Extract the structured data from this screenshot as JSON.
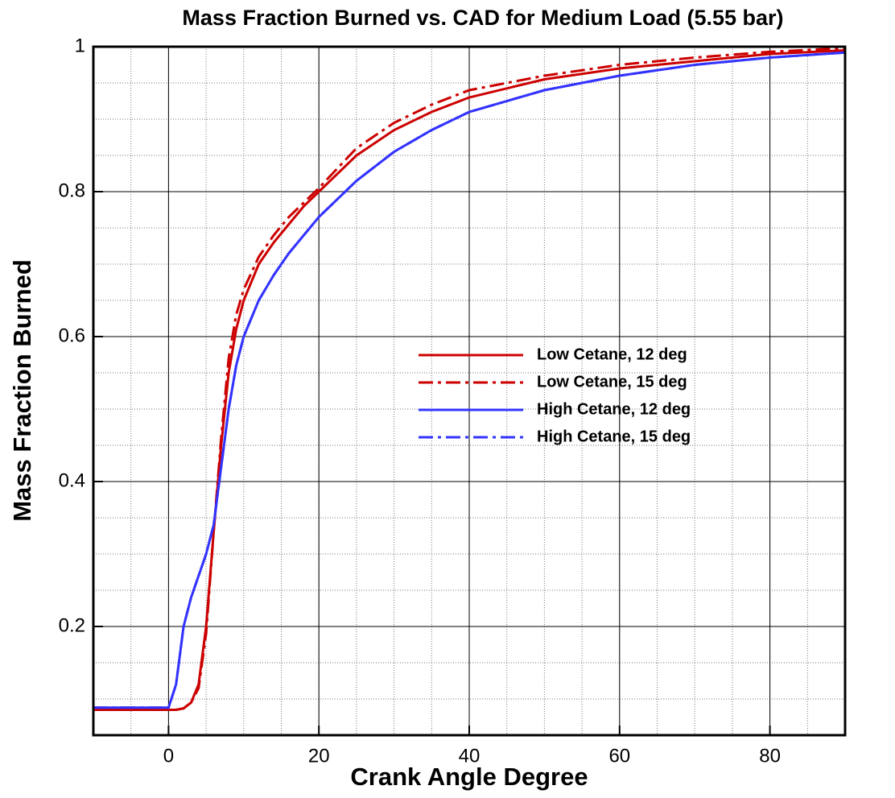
{
  "chart_data": {
    "type": "line",
    "title": "Mass Fraction Burned vs. CAD for Medium Load (5.55 bar)",
    "x_label": "Crank Angle Degree",
    "y_label": "Mass Fraction Burned",
    "x": [
      -10,
      -5,
      0,
      1,
      2,
      3,
      4,
      5,
      6,
      7,
      8,
      9,
      10,
      12,
      14,
      16,
      18,
      20,
      25,
      30,
      35,
      40,
      50,
      60,
      70,
      80,
      90
    ],
    "series": [
      {
        "name": "Low Cetane, 12 deg",
        "color": "#cc0000",
        "style": "solid",
        "values": [
          0.085,
          0.085,
          0.085,
          0.085,
          0.087,
          0.095,
          0.12,
          0.2,
          0.33,
          0.45,
          0.55,
          0.61,
          0.65,
          0.7,
          0.73,
          0.755,
          0.78,
          0.8,
          0.85,
          0.885,
          0.91,
          0.93,
          0.955,
          0.97,
          0.98,
          0.99,
          0.995
        ]
      },
      {
        "name": "Low Cetane, 15 deg",
        "color": "#cc0000",
        "style": "dashdot",
        "values": [
          0.085,
          0.085,
          0.085,
          0.085,
          0.087,
          0.095,
          0.115,
          0.19,
          0.33,
          0.46,
          0.57,
          0.63,
          0.665,
          0.71,
          0.74,
          0.765,
          0.785,
          0.805,
          0.86,
          0.895,
          0.92,
          0.94,
          0.96,
          0.975,
          0.985,
          0.993,
          0.998
        ]
      },
      {
        "name": "High Cetane, 12 deg",
        "color": "#3333ff",
        "style": "solid",
        "values": [
          0.088,
          0.088,
          0.088,
          0.12,
          0.2,
          0.24,
          0.27,
          0.3,
          0.34,
          0.42,
          0.5,
          0.56,
          0.6,
          0.65,
          0.685,
          0.715,
          0.74,
          0.765,
          0.815,
          0.855,
          0.885,
          0.91,
          0.94,
          0.96,
          0.975,
          0.985,
          0.992
        ]
      },
      {
        "name": "High Cetane, 15 deg",
        "color": "#3333ff",
        "style": "dashdot",
        "values": [
          0.088,
          0.088,
          0.088,
          0.12,
          0.2,
          0.24,
          0.27,
          0.3,
          0.34,
          0.42,
          0.5,
          0.56,
          0.6,
          0.65,
          0.685,
          0.715,
          0.74,
          0.765,
          0.815,
          0.855,
          0.885,
          0.91,
          0.94,
          0.96,
          0.975,
          0.985,
          0.992
        ]
      }
    ],
    "xlim": [
      -10,
      90
    ],
    "xticks": [
      0,
      20,
      40,
      60,
      80
    ],
    "ylim": [
      0.05,
      1
    ],
    "yticks": [
      0.2,
      0.4,
      0.6,
      0.8,
      1
    ],
    "grid": true,
    "minor_grid": true
  }
}
